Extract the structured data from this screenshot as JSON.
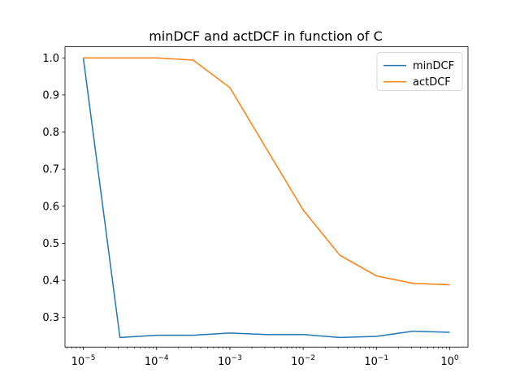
{
  "chart_data": {
    "type": "line",
    "title": "minDCF and actDCF in function of C",
    "xlabel": "",
    "ylabel": "",
    "xscale": "log",
    "xlim": [
      1e-05,
      1
    ],
    "ylim": [
      0.22,
      1.03
    ],
    "x": [
      1e-05,
      3.16e-05,
      0.0001,
      0.000316,
      0.001,
      0.00316,
      0.01,
      0.0316,
      0.1,
      0.316,
      1
    ],
    "x_ticks": [
      1e-05,
      0.0001,
      0.001,
      0.01,
      0.1,
      1
    ],
    "x_tick_labels": [
      {
        "base": "10",
        "exp": "−5"
      },
      {
        "base": "10",
        "exp": "−4"
      },
      {
        "base": "10",
        "exp": "−3"
      },
      {
        "base": "10",
        "exp": "−2"
      },
      {
        "base": "10",
        "exp": "−1"
      },
      {
        "base": "10",
        "exp": "0"
      }
    ],
    "y_ticks": [
      0.3,
      0.4,
      0.5,
      0.6,
      0.7,
      0.8,
      0.9,
      1.0
    ],
    "y_tick_labels": [
      "0.3",
      "0.4",
      "0.5",
      "0.6",
      "0.7",
      "0.8",
      "0.9",
      "1.0"
    ],
    "series": [
      {
        "name": "minDCF",
        "color": "#1f77b4",
        "values": [
          1.0,
          0.246,
          0.252,
          0.252,
          0.258,
          0.254,
          0.254,
          0.246,
          0.249,
          0.263,
          0.26
        ]
      },
      {
        "name": "actDCF",
        "color": "#ff7f0e",
        "values": [
          1.0,
          1.0,
          1.0,
          0.994,
          0.92,
          0.755,
          0.59,
          0.468,
          0.412,
          0.392,
          0.388
        ]
      }
    ],
    "grid": false,
    "legend_position": "top-right"
  }
}
